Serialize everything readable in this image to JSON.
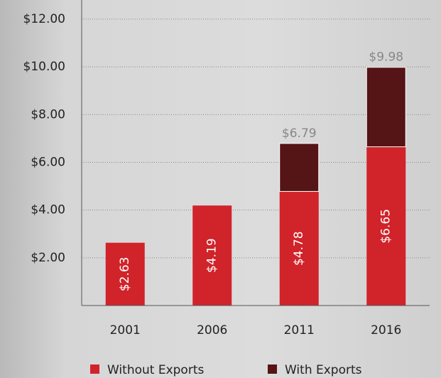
{
  "chart_data": {
    "type": "stacked-bar",
    "categories": [
      "2001",
      "2006",
      "2011",
      "2016"
    ],
    "series": [
      {
        "name": "Without Exports",
        "color": "#d1232a",
        "values": [
          2.63,
          4.19,
          4.78,
          6.65
        ],
        "value_labels": [
          "$2.63",
          "$4.19",
          "$4.78",
          "$6.65"
        ]
      },
      {
        "name": "With Exports",
        "color": "#551416",
        "values": [
          null,
          null,
          2.01,
          3.33
        ]
      }
    ],
    "totals": {
      "values": [
        null,
        null,
        6.79,
        9.98
      ],
      "value_labels": [
        null,
        null,
        "$6.79",
        "$9.98"
      ]
    },
    "ylim": [
      0,
      12.8
    ],
    "yticks": [
      {
        "value": 2,
        "label": "$2.00"
      },
      {
        "value": 4,
        "label": "$4.00"
      },
      {
        "value": 6,
        "label": "$6.00"
      },
      {
        "value": 8,
        "label": "$8.00"
      },
      {
        "value": 10,
        "label": "$10.00"
      },
      {
        "value": 12,
        "label": "$12.00"
      }
    ],
    "grid": true
  }
}
